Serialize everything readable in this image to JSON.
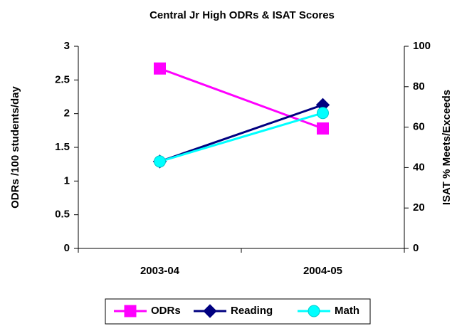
{
  "chart_data": {
    "type": "line",
    "title": "Central Jr High ODRs & ISAT Scores",
    "y_label": "ODRs /100 students/day",
    "y2_label": "ISAT % Meets/Exceeds",
    "categories": [
      "2003-04",
      "2004-05"
    ],
    "series": [
      {
        "name": "ODRs",
        "color": "#ff00ff",
        "marker": "square",
        "values": [
          2.67,
          1.78
        ]
      },
      {
        "name": "Reading",
        "color": "#000080",
        "marker": "diamond",
        "axis": "y2",
        "values": [
          43,
          71
        ]
      },
      {
        "name": "Math",
        "color": "#00ffff",
        "marker": "circle",
        "axis": "y2",
        "values": [
          43,
          67
        ]
      }
    ],
    "ylim": [
      0,
      3
    ],
    "yticks": [
      0,
      0.5,
      1,
      1.5,
      2,
      2.5,
      3
    ],
    "y2lim": [
      0,
      100
    ],
    "y2ticks": [
      0,
      20,
      40,
      60,
      80,
      100
    ],
    "grid": false,
    "legend": "bottom"
  }
}
